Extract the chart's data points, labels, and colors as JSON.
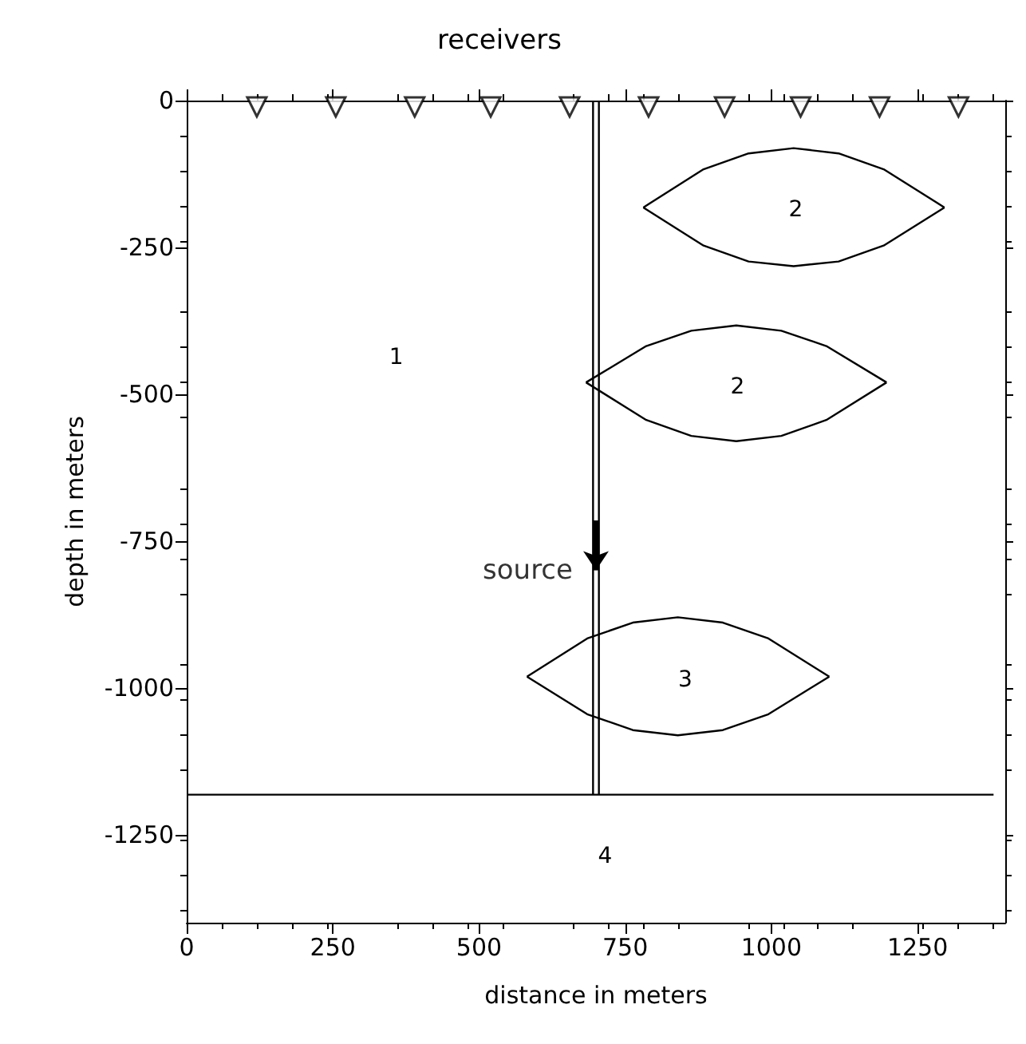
{
  "chart_data": {
    "type": "line",
    "title": "receivers",
    "xlabel": "distance in meters",
    "ylabel": "depth in meters",
    "xlim": [
      0,
      1400
    ],
    "xticks": [
      0,
      250,
      500,
      750,
      1000,
      1250
    ],
    "ylim": [
      -1400,
      0
    ],
    "yticks": [
      0,
      -250,
      -500,
      -750,
      -1000,
      -1250
    ],
    "grid": false,
    "line_style": "solid",
    "series": [
      {
        "type": "scatter",
        "marker": "triangle",
        "color": "#000000",
        "x": [
          120,
          255,
          390,
          520,
          655,
          790,
          920,
          1050,
          1185,
          1320
        ],
        "values": [
          0,
          0,
          0,
          0,
          0,
          0,
          0,
          0,
          0,
          0
        ]
      },
      {
        "color": "#000000",
        "x": [
          781,
          884,
          961,
          1038,
          1115,
          1192,
          1296
        ],
        "values": [
          -182,
          -117,
          -90,
          -81,
          -90,
          -117,
          -182
        ]
      },
      {
        "color": "#000000",
        "x": [
          781,
          884,
          961,
          1038,
          1115,
          1192,
          1296
        ],
        "values": [
          -182,
          -247,
          -274,
          -282,
          -274,
          -247,
          -182
        ]
      },
      {
        "color": "#000000",
        "x": [
          683,
          786,
          863,
          940,
          1017,
          1094,
          1197
        ],
        "values": [
          -480,
          -418,
          -392,
          -383,
          -392,
          -418,
          -480
        ]
      },
      {
        "color": "#000000",
        "x": [
          683,
          786,
          863,
          940,
          1017,
          1094,
          1197
        ],
        "values": [
          -480,
          -544,
          -571,
          -580,
          -571,
          -544,
          -480
        ]
      },
      {
        "color": "#000000",
        "x": [
          582,
          685,
          763,
          840,
          917,
          995,
          1099
        ],
        "values": [
          -981,
          -916,
          -889,
          -880,
          -889,
          -916,
          -981
        ]
      },
      {
        "color": "#000000",
        "x": [
          582,
          685,
          763,
          840,
          917,
          995,
          1099
        ],
        "values": [
          -981,
          -1045,
          -1072,
          -1081,
          -1072,
          -1045,
          -981
        ]
      },
      {
        "color": "#000000",
        "x": [
          695,
          695
        ],
        "values": [
          0,
          -1182
        ]
      },
      {
        "color": "#000000",
        "x": [
          705,
          705
        ],
        "values": [
          0,
          -1182
        ]
      },
      {
        "color": "#000000",
        "x": [
          0,
          1380
        ],
        "values": [
          -1182,
          -1182
        ]
      }
    ],
    "annotations": [
      "1",
      "2",
      "2",
      "3",
      "4",
      {
        "text": "source",
        "x": 700,
        "y": -800
      }
    ]
  }
}
